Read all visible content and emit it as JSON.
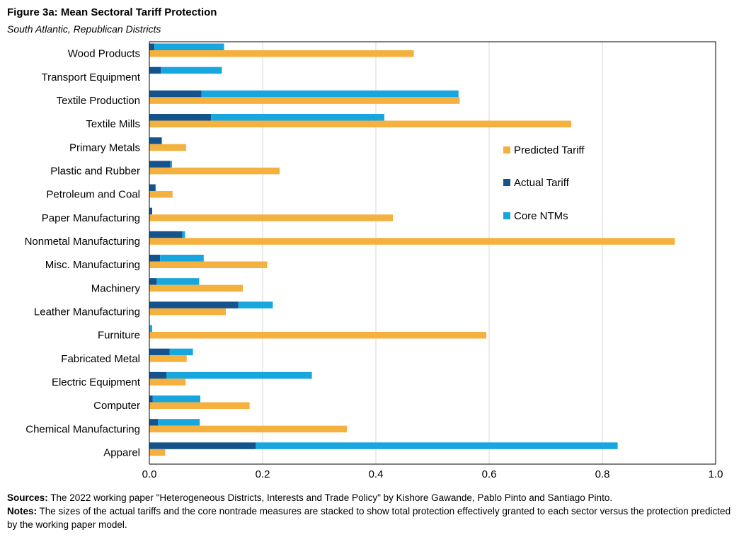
{
  "title": "Figure 3a: Mean Sectoral Tariff Protection",
  "subtitle": "South Atlantic, Republican Districts",
  "sources_label": "Sources:",
  "sources_text": " The 2022  working paper \"Heterogeneous Districts, Interests and Trade Policy\" by Kishore Gawande, Pablo Pinto and Santiago Pinto.",
  "notes_label": "Notes:",
  "notes_text": " The sizes of the actual tariffs and the core nontrade measures are stacked to show total protection effectively granted to each sector versus the protection predicted by the working paper model.",
  "colors": {
    "predicted": "#F5B13F",
    "actual": "#14538C",
    "core": "#18A6DF",
    "grid": "#D9D9D9",
    "axis": "#000000"
  },
  "chart_data": {
    "type": "bar",
    "orientation": "horizontal",
    "categories": [
      "Wood Products",
      "Transport Equipment",
      "Textile Production",
      "Textile Mills",
      "Primary Metals",
      "Plastic and Rubber",
      "Petroleum and Coal",
      "Paper Manufacturing",
      "Nonmetal Manufacturing",
      "Misc. Manufacturing",
      "Machinery",
      "Leather Manufacturing",
      "Furniture",
      "Fabricated Metal",
      "Electric Equipment",
      "Computer",
      "Chemical Manufacturing",
      "Apparel"
    ],
    "series": [
      {
        "name": "Predicted Tariff",
        "stack": "predicted",
        "values": [
          0.467,
          0,
          0.548,
          0.745,
          0.065,
          0.23,
          0.041,
          0.43,
          0.928,
          0.208,
          0.165,
          0.135,
          0.595,
          0.066,
          0.064,
          0.177,
          0.349,
          0.028
        ]
      },
      {
        "name": "Actual Tariff",
        "stack": "protection",
        "values": [
          0.009,
          0.02,
          0.092,
          0.109,
          0.022,
          0.037,
          0.011,
          0.005,
          0.058,
          0.019,
          0.013,
          0.157,
          0.001,
          0.036,
          0.03,
          0.006,
          0.015,
          0.188
        ]
      },
      {
        "name": "Core NTMs",
        "stack": "protection",
        "values": [
          0.123,
          0.108,
          0.454,
          0.306,
          0,
          0.003,
          0,
          0,
          0.005,
          0.077,
          0.075,
          0.061,
          0.004,
          0.041,
          0.257,
          0.084,
          0.074,
          0.639
        ]
      }
    ],
    "xlim": [
      0,
      1.0
    ],
    "xticks": [
      "0.0",
      "0.2",
      "0.4",
      "0.6",
      "0.8",
      "1.0"
    ],
    "xtick_values": [
      0,
      0.2,
      0.4,
      0.6,
      0.8,
      1.0
    ],
    "grid": true,
    "legend": [
      "Predicted Tariff",
      "Actual Tariff",
      "Core NTMs"
    ],
    "legend_position": "right"
  }
}
